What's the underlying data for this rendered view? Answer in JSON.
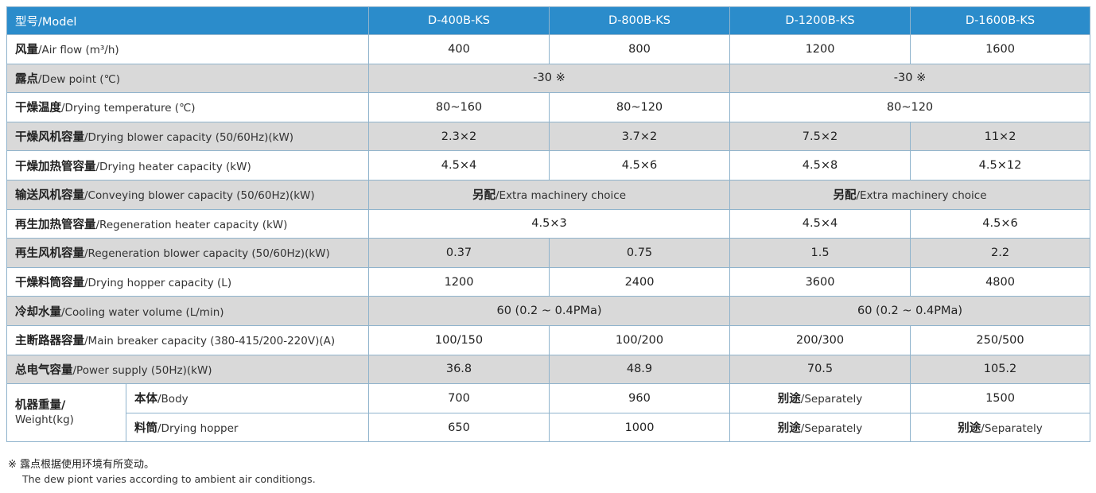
{
  "table": {
    "header": {
      "label": {
        "zh": "型号",
        "en": "/Model"
      },
      "models": [
        "D-400B-KS",
        "D-800B-KS",
        "D-1200B-KS",
        "D-1600B-KS"
      ]
    },
    "rows": [
      {
        "zh": "风量",
        "en": "/Air flow (m³/h)",
        "cells": [
          "400",
          "800",
          "1200",
          "1600"
        ]
      },
      {
        "zh": "露点",
        "en": "/Dew point (℃)",
        "cells": [
          "-30 ※",
          "-30 ※"
        ]
      },
      {
        "zh": "干燥温度",
        "en": "/Drying temperature (℃)",
        "cells": [
          "80~160",
          "80~120",
          "80~120"
        ]
      },
      {
        "zh": "干燥风机容量",
        "en": "/Drying blower capacity (50/60Hz)(kW)",
        "cells": [
          "2.3×2",
          "3.7×2",
          "7.5×2",
          "11×2"
        ]
      },
      {
        "zh": "干燥加热管容量",
        "en": "/Drying heater capacity (kW)",
        "cells": [
          "4.5×4",
          "4.5×6",
          "4.5×8",
          "4.5×12"
        ]
      },
      {
        "zh": "输送风机容量",
        "en": "/Conveying blower capacity (50/60Hz)(kW)",
        "cells": [
          {
            "zh": "另配",
            "en": "/Extra machinery choice"
          },
          {
            "zh": "另配",
            "en": "/Extra machinery choice"
          }
        ]
      },
      {
        "zh": "再生加热管容量",
        "en": "/Regeneration heater capacity (kW)",
        "cells": [
          "4.5×3",
          "4.5×4",
          "4.5×6"
        ]
      },
      {
        "zh": "再生风机容量",
        "en": "/Regeneration blower capacity (50/60Hz)(kW)",
        "cells": [
          "0.37",
          "0.75",
          "1.5",
          "2.2"
        ]
      },
      {
        "zh": "干燥料筒容量",
        "en": "/Drying hopper capacity (L)",
        "cells": [
          "1200",
          "2400",
          "3600",
          "4800"
        ]
      },
      {
        "zh": "冷却水量",
        "en": "/Cooling water volume (L/min)",
        "cells": [
          "60 (0.2 ~ 0.4PMa)",
          "60 (0.2 ~ 0.4PMa)"
        ]
      },
      {
        "zh": "主断路器容量",
        "en": "/Main breaker capacity (380-415/200-220V)(A)",
        "cells": [
          "100/150",
          "100/200",
          "200/300",
          "250/500"
        ]
      },
      {
        "zh": "总电气容量",
        "en": "/Power supply (50Hz)(kW)",
        "cells": [
          "36.8",
          "48.9",
          "70.5",
          "105.2"
        ]
      }
    ],
    "weight": {
      "label": {
        "zh": "机器重量/",
        "en": "Weight(kg)"
      },
      "body": {
        "zh": "本体",
        "en": "/Body",
        "cells": [
          "700",
          "960",
          {
            "zh": "别途",
            "en": "/Separately"
          },
          "1500"
        ]
      },
      "hopper": {
        "zh": "料筒",
        "en": "/Drying hopper",
        "cells": [
          "650",
          "1000",
          {
            "zh": "别途",
            "en": "/Separately"
          },
          {
            "zh": "别途",
            "en": "/Separately"
          }
        ]
      }
    }
  },
  "footnote": {
    "zh": "※ 露点根据使用环境有所变动。",
    "en": "The dew piont varies according to ambient air conditiongs."
  }
}
